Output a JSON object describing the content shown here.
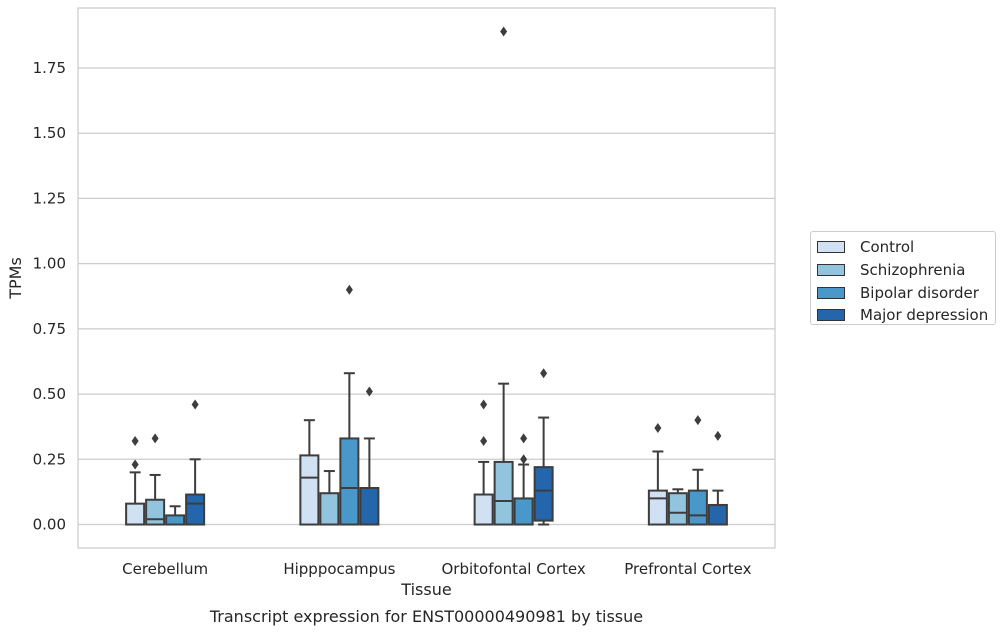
{
  "chart_data": {
    "type": "box",
    "title": "",
    "caption": "Transcript expression for ENST00000490981 by tissue",
    "xlabel": "Tissue",
    "ylabel": "TPMs",
    "ylim": [
      -0.09,
      1.98
    ],
    "yticks": [
      "0.00",
      "0.25",
      "0.50",
      "0.75",
      "1.00",
      "1.25",
      "1.50",
      "1.75"
    ],
    "grid": true,
    "legend_position": "right",
    "categories": [
      "Cerebellum",
      "Hipppocampus",
      "Orbitofontal Cortex",
      "Prefrontal Cortex"
    ],
    "series": [
      {
        "name": "Control",
        "color": "#cfe1f2",
        "boxes": [
          {
            "q1": 0.0,
            "median": 0.0,
            "q3": 0.08,
            "whisker_low": 0.0,
            "whisker_high": 0.2,
            "outliers": [
              0.23,
              0.32
            ]
          },
          {
            "q1": 0.0,
            "median": 0.18,
            "q3": 0.265,
            "whisker_low": 0.0,
            "whisker_high": 0.4,
            "outliers": []
          },
          {
            "q1": 0.0,
            "median": 0.0,
            "q3": 0.115,
            "whisker_low": 0.0,
            "whisker_high": 0.24,
            "outliers": [
              0.32,
              0.46
            ]
          },
          {
            "q1": 0.0,
            "median": 0.1,
            "q3": 0.13,
            "whisker_low": 0.0,
            "whisker_high": 0.28,
            "outliers": [
              0.37
            ]
          }
        ]
      },
      {
        "name": "Schizophrenia",
        "color": "#93c4de",
        "boxes": [
          {
            "q1": 0.0,
            "median": 0.02,
            "q3": 0.095,
            "whisker_low": 0.0,
            "whisker_high": 0.19,
            "outliers": [
              0.33
            ]
          },
          {
            "q1": 0.0,
            "median": 0.0,
            "q3": 0.12,
            "whisker_low": 0.0,
            "whisker_high": 0.205,
            "outliers": []
          },
          {
            "q1": 0.0,
            "median": 0.09,
            "q3": 0.24,
            "whisker_low": 0.0,
            "whisker_high": 0.54,
            "outliers": [
              1.89
            ]
          },
          {
            "q1": 0.0,
            "median": 0.045,
            "q3": 0.12,
            "whisker_low": 0.0,
            "whisker_high": 0.135,
            "outliers": []
          }
        ]
      },
      {
        "name": "Bipolar disorder",
        "color": "#4a98c9",
        "boxes": [
          {
            "q1": 0.0,
            "median": 0.0,
            "q3": 0.035,
            "whisker_low": 0.0,
            "whisker_high": 0.07,
            "outliers": []
          },
          {
            "q1": 0.0,
            "median": 0.14,
            "q3": 0.33,
            "whisker_low": 0.0,
            "whisker_high": 0.58,
            "outliers": [
              0.9
            ]
          },
          {
            "q1": 0.0,
            "median": 0.0,
            "q3": 0.1,
            "whisker_low": 0.0,
            "whisker_high": 0.23,
            "outliers": [
              0.25,
              0.33
            ]
          },
          {
            "q1": 0.0,
            "median": 0.035,
            "q3": 0.13,
            "whisker_low": 0.0,
            "whisker_high": 0.21,
            "outliers": [
              0.4
            ]
          }
        ]
      },
      {
        "name": "Major depression",
        "color": "#2366ab",
        "boxes": [
          {
            "q1": 0.0,
            "median": 0.08,
            "q3": 0.115,
            "whisker_low": 0.0,
            "whisker_high": 0.25,
            "outliers": [
              0.46
            ]
          },
          {
            "q1": 0.0,
            "median": 0.0,
            "q3": 0.14,
            "whisker_low": 0.0,
            "whisker_high": 0.33,
            "outliers": [
              0.51
            ]
          },
          {
            "q1": 0.015,
            "median": 0.13,
            "q3": 0.22,
            "whisker_low": 0.0,
            "whisker_high": 0.41,
            "outliers": [
              0.58
            ]
          },
          {
            "q1": 0.0,
            "median": 0.0,
            "q3": 0.075,
            "whisker_low": 0.0,
            "whisker_high": 0.13,
            "outliers": [
              0.34
            ]
          }
        ]
      }
    ]
  }
}
